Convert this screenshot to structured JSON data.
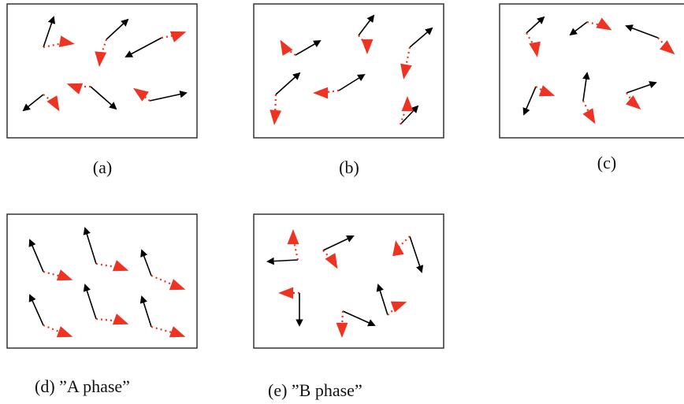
{
  "figure": {
    "panels": [
      {
        "id": "a",
        "caption": "(a)"
      },
      {
        "id": "b",
        "caption": "(b)"
      },
      {
        "id": "c",
        "caption": "(c)"
      },
      {
        "id": "d",
        "caption": "(d)  ”A phase”"
      },
      {
        "id": "e",
        "caption": "(e) ”B phase”"
      }
    ],
    "colors": {
      "frame": "#333333",
      "black_arrow": "#000000",
      "red_arrow": "#ee3322",
      "dotted_link": "#ee3322"
    }
  }
}
